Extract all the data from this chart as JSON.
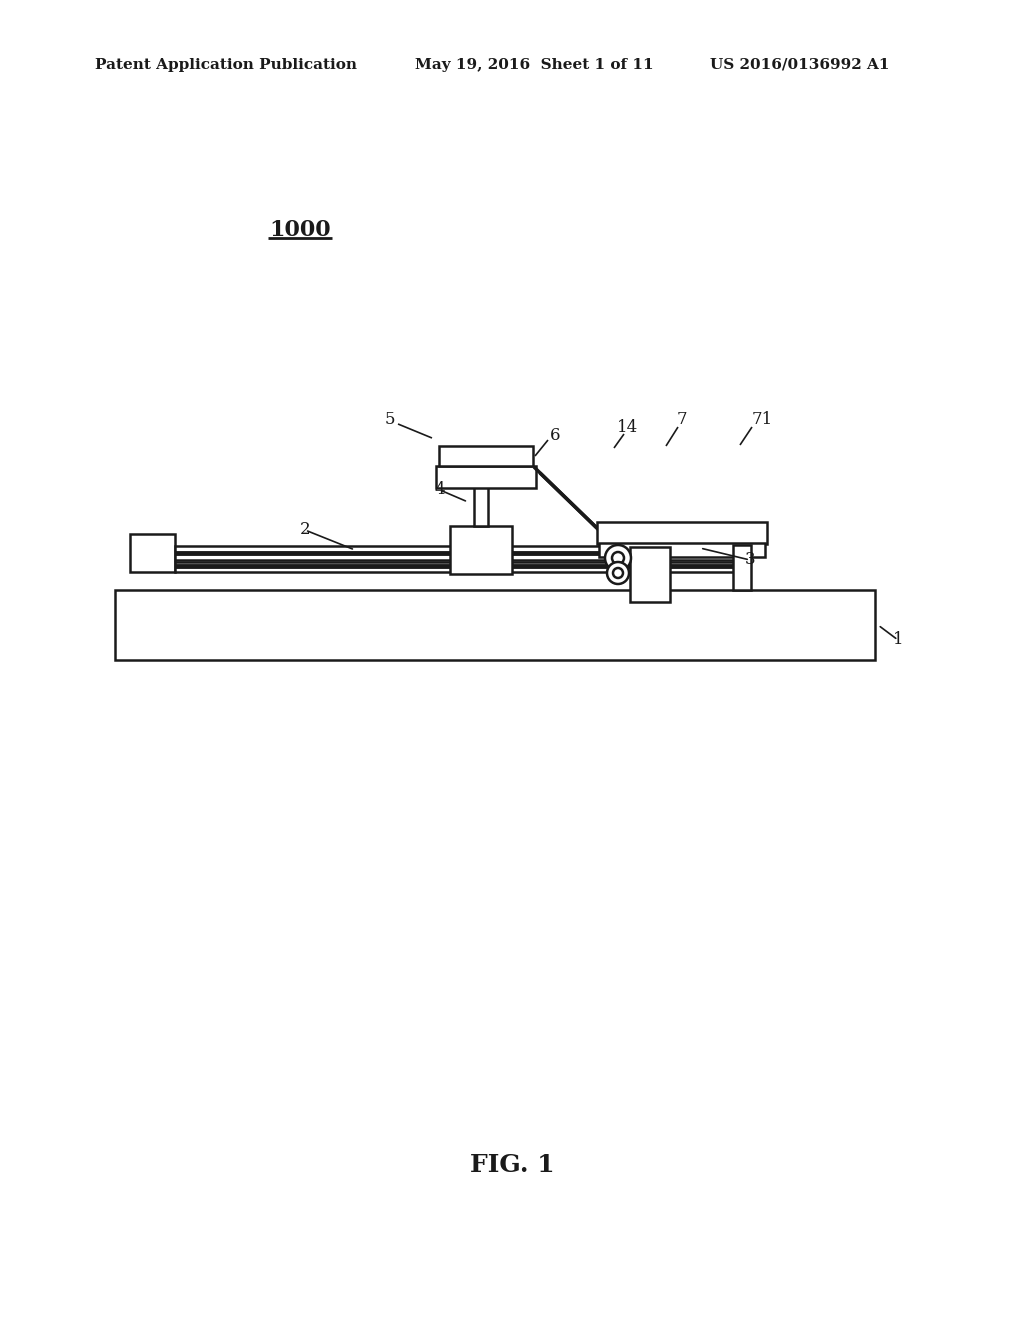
{
  "bg_color": "#ffffff",
  "line_color": "#1a1a1a",
  "header_left": "Patent Application Publication",
  "header_mid": "May 19, 2016  Sheet 1 of 11",
  "header_right": "US 2016/0136992 A1",
  "figure_label": "FIG. 1",
  "diagram_label": "1000"
}
